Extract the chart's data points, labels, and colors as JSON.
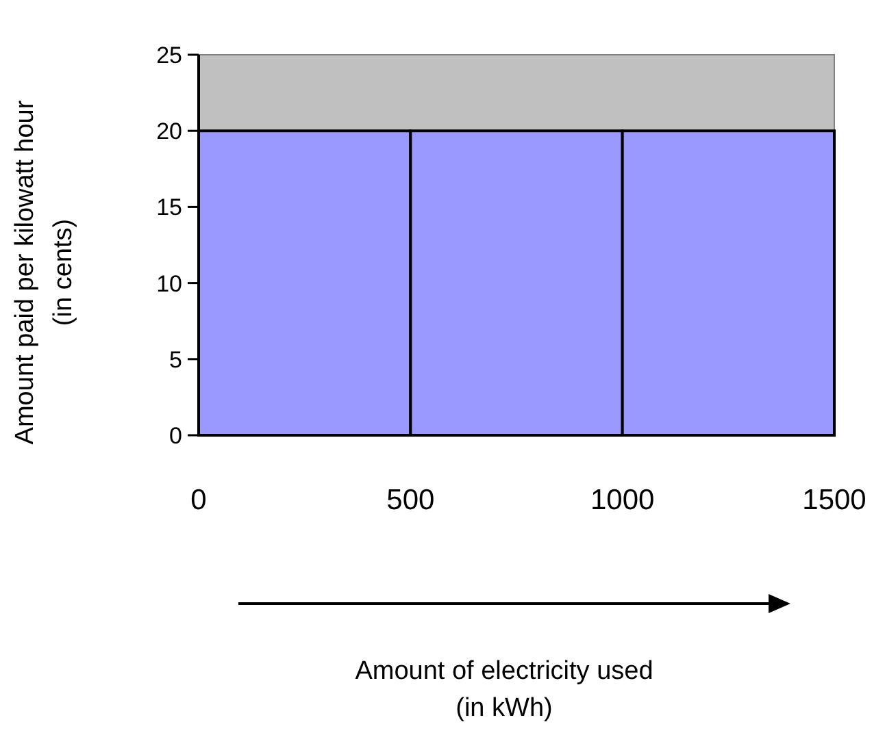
{
  "chart_data": {
    "type": "histogram",
    "bins": [
      0,
      500,
      1000,
      1500
    ],
    "values": [
      20,
      20,
      20
    ],
    "color": "#9999ff",
    "xlim": [
      0,
      1500
    ],
    "xticks": [
      0,
      500,
      1000,
      1500
    ],
    "ylim": [
      0,
      25
    ],
    "yticks": [
      0,
      5,
      10,
      15,
      20,
      25
    ],
    "annotations": [
      "Amount of electricity used\n(in kWh)"
    ],
    "ylabel": "Amount paid per kilowatt hour\n(in cents)",
    "grid": false
  }
}
